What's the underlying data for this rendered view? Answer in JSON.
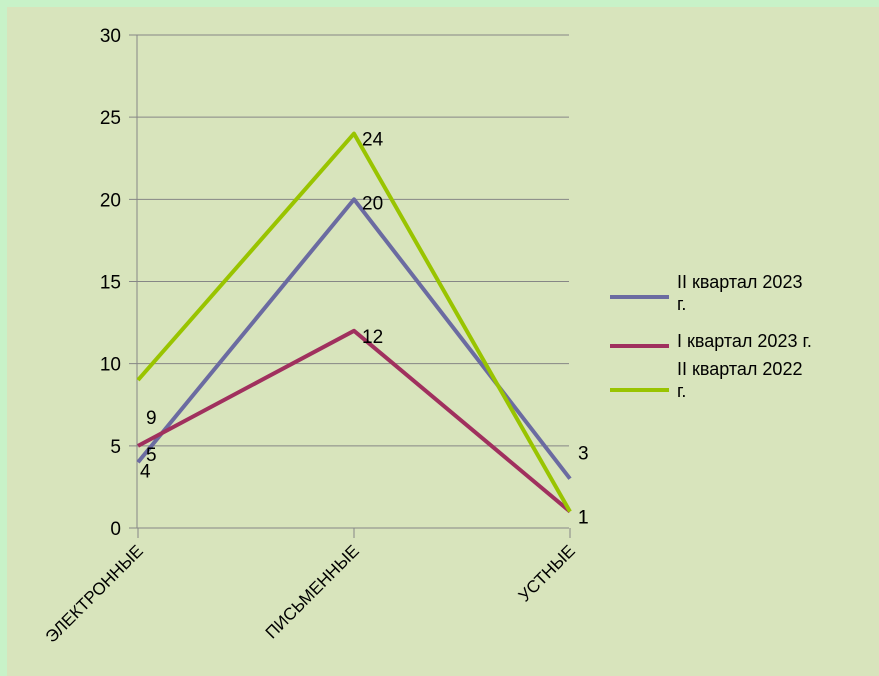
{
  "chart_data": {
    "type": "line",
    "title": "",
    "xlabel": "",
    "ylabel": "",
    "categories": [
      "ЭЛЕКТРОННЫЕ",
      "ПИСЬМЕННЫЕ",
      "УСТНЫЕ"
    ],
    "ylim": [
      0,
      30
    ],
    "y_ticks": [
      0,
      5,
      10,
      15,
      20,
      25,
      30
    ],
    "grid": true,
    "legend_position": "right",
    "series": [
      {
        "name": "II квартал 2023 г.",
        "values": [
          4,
          20,
          3
        ],
        "color": "#6b6ba1",
        "legend_lines": [
          "II квартал 2023",
          "г."
        ]
      },
      {
        "name": "I квартал 2023 г.",
        "values": [
          5,
          12,
          1
        ],
        "color": "#a0305e",
        "legend_lines": [
          "I квартал 2023 г."
        ]
      },
      {
        "name": "II квартал 2022 г.",
        "values": [
          9,
          24,
          1
        ],
        "color": "#99c400",
        "legend_lines": [
          "II квартал 2022",
          "г."
        ]
      }
    ]
  },
  "colors": {
    "page_background": "#c8f2c8",
    "plot_background": "#d8e4bc",
    "gridline": "#868686"
  }
}
